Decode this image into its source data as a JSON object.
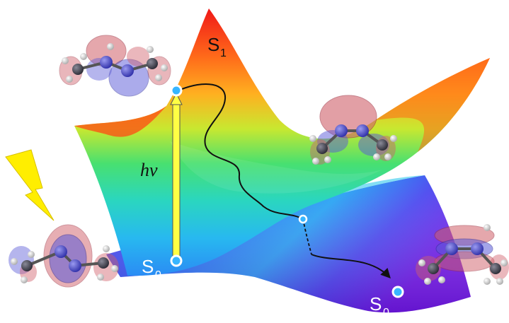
{
  "labels": {
    "s1_main": "S",
    "s1_sub": "1",
    "s0_left_main": "S",
    "s0_left_sub": "0",
    "s0_right_main": "S",
    "s0_right_sub": "0",
    "hv": "hν"
  },
  "colors": {
    "lightning": "#ffee00",
    "excitation_arrow": "#ffff44",
    "state_dot": "#38b6ff",
    "path": "#111111",
    "orbital_red": "#d0606a",
    "orbital_blue": "#5a5ad8",
    "atom_carbon": "#3a3a4a",
    "atom_nitrogen": "#4a4ad0",
    "atom_hydrogen": "#e8e8e8"
  }
}
